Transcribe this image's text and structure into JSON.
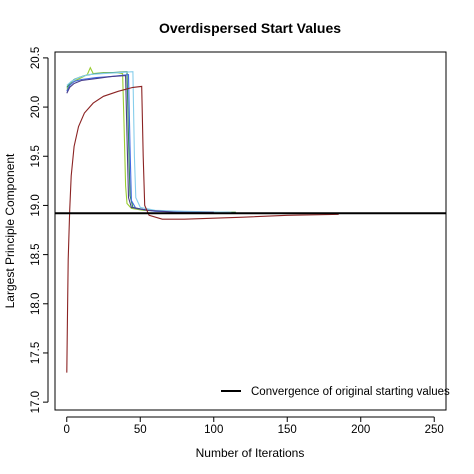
{
  "chart_data": {
    "type": "line",
    "title": "Overdispersed Start Values",
    "xlabel": "Number of Iterations",
    "ylabel": "Largest Principle Component",
    "xlim": [
      -8,
      258
    ],
    "ylim": [
      16.92,
      20.56
    ],
    "xticks": [
      0,
      50,
      100,
      150,
      200,
      250
    ],
    "yticks": [
      17.0,
      17.5,
      18.0,
      18.5,
      19.0,
      19.5,
      20.0,
      20.5
    ],
    "ytick_labels": [
      "17.0",
      "17.5",
      "18.0",
      "18.5",
      "19.0",
      "19.5",
      "20.0",
      "20.5"
    ],
    "grid": false,
    "legend_position": "bottom-right",
    "reference_line": {
      "y": 18.92,
      "color": "#000000",
      "label": "Convergence of original starting values"
    },
    "series": [
      {
        "color": "#9acd32",
        "points": [
          [
            0,
            20.18
          ],
          [
            1,
            20.2
          ],
          [
            3,
            20.24
          ],
          [
            6,
            20.27
          ],
          [
            10,
            20.3
          ],
          [
            14,
            20.33
          ],
          [
            16,
            20.4
          ],
          [
            18,
            20.34
          ],
          [
            25,
            20.35
          ],
          [
            34,
            20.35
          ],
          [
            38,
            20.34
          ],
          [
            39,
            19.8
          ],
          [
            40,
            19.2
          ],
          [
            41,
            19.02
          ],
          [
            44,
            18.97
          ],
          [
            52,
            18.95
          ],
          [
            70,
            18.94
          ],
          [
            100,
            18.93
          ],
          [
            115,
            18.93
          ]
        ]
      },
      {
        "color": "#2e8b57",
        "points": [
          [
            0,
            20.2
          ],
          [
            2,
            20.24
          ],
          [
            5,
            20.28
          ],
          [
            8,
            20.3
          ],
          [
            12,
            20.32
          ],
          [
            20,
            20.34
          ],
          [
            30,
            20.35
          ],
          [
            41,
            20.36
          ],
          [
            42,
            19.7
          ],
          [
            43,
            19.1
          ],
          [
            45,
            18.98
          ],
          [
            55,
            18.95
          ],
          [
            70,
            18.94
          ],
          [
            100,
            18.93
          ],
          [
            115,
            18.93
          ]
        ]
      },
      {
        "color": "#4169e1",
        "points": [
          [
            0,
            20.16
          ],
          [
            2,
            20.22
          ],
          [
            5,
            20.26
          ],
          [
            10,
            20.28
          ],
          [
            20,
            20.3
          ],
          [
            30,
            20.31
          ],
          [
            42,
            20.33
          ],
          [
            43,
            19.6
          ],
          [
            44,
            19.05
          ],
          [
            47,
            18.97
          ],
          [
            60,
            18.94
          ],
          [
            85,
            18.93
          ],
          [
            110,
            18.93
          ]
        ]
      },
      {
        "color": "#87ceeb",
        "points": [
          [
            0,
            20.22
          ],
          [
            3,
            20.26
          ],
          [
            8,
            20.3
          ],
          [
            15,
            20.33
          ],
          [
            25,
            20.34
          ],
          [
            35,
            20.35
          ],
          [
            45,
            20.36
          ],
          [
            46,
            19.5
          ],
          [
            47,
            19.08
          ],
          [
            50,
            18.98
          ],
          [
            60,
            18.95
          ],
          [
            80,
            18.94
          ],
          [
            112,
            18.93
          ]
        ]
      },
      {
        "color": "#483d8b",
        "points": [
          [
            0,
            20.14
          ],
          [
            2,
            20.2
          ],
          [
            5,
            20.24
          ],
          [
            10,
            20.27
          ],
          [
            20,
            20.29
          ],
          [
            30,
            20.31
          ],
          [
            40,
            20.32
          ],
          [
            41,
            19.7
          ],
          [
            42,
            19.08
          ],
          [
            44,
            18.98
          ],
          [
            55,
            18.95
          ],
          [
            75,
            18.93
          ],
          [
            100,
            18.93
          ]
        ]
      },
      {
        "color": "#8b2323",
        "points": [
          [
            0,
            17.3
          ],
          [
            0.5,
            17.9
          ],
          [
            1,
            18.45
          ],
          [
            2,
            18.95
          ],
          [
            3,
            19.3
          ],
          [
            5,
            19.6
          ],
          [
            8,
            19.8
          ],
          [
            12,
            19.94
          ],
          [
            18,
            20.04
          ],
          [
            25,
            20.11
          ],
          [
            35,
            20.16
          ],
          [
            45,
            20.2
          ],
          [
            51,
            20.21
          ],
          [
            52,
            19.5
          ],
          [
            53,
            19.0
          ],
          [
            56,
            18.9
          ],
          [
            65,
            18.86
          ],
          [
            80,
            18.86
          ],
          [
            100,
            18.87
          ],
          [
            120,
            18.88
          ],
          [
            150,
            18.9
          ],
          [
            185,
            18.91
          ]
        ]
      }
    ]
  }
}
